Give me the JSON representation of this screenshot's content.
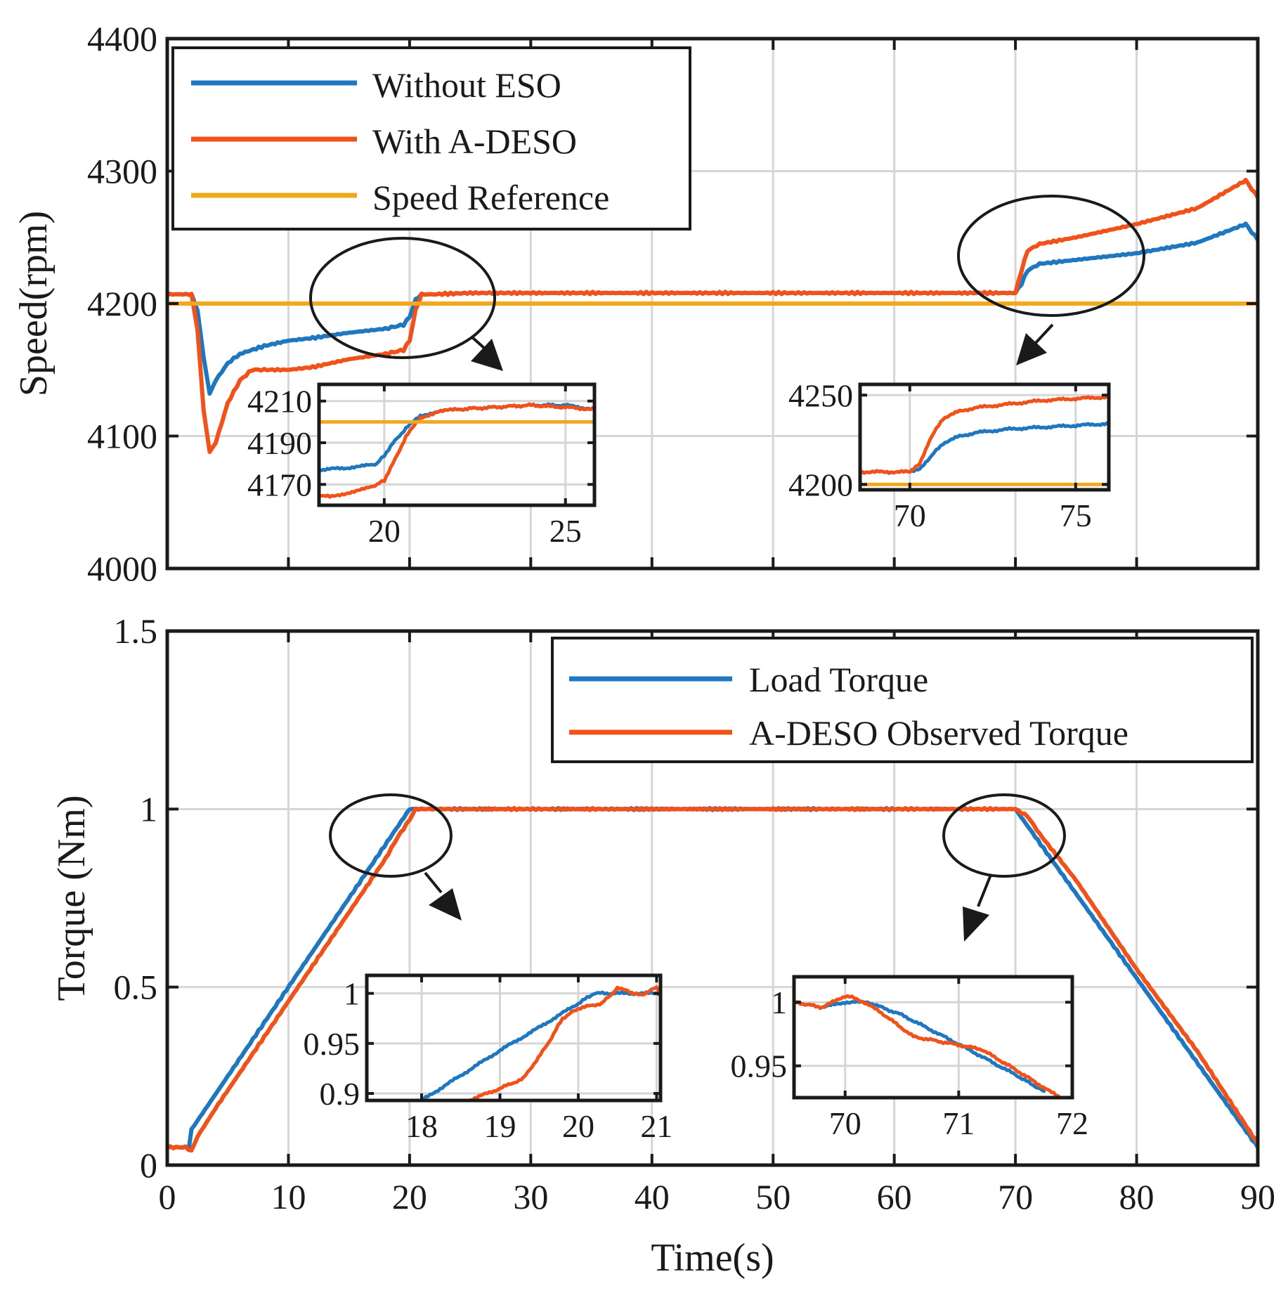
{
  "colors": {
    "blue": "#1f77c0",
    "orange": "#f0521a",
    "yellow": "#f2a81c"
  },
  "chart_data": [
    {
      "type": "line",
      "id": "speed",
      "xlabel": "",
      "ylabel": "Speed(rpm)",
      "xlim": [
        0,
        90
      ],
      "ylim": [
        4000,
        4400
      ],
      "xticks": [
        0,
        10,
        20,
        30,
        40,
        50,
        60,
        70,
        80,
        90
      ],
      "yticks": [
        4000,
        4100,
        4200,
        4300,
        4400
      ],
      "xtick_labels": [],
      "ytick_labels": [
        "4000",
        "4100",
        "4200",
        "4300",
        "4400"
      ],
      "grid": true,
      "legend": {
        "placement": "top-left",
        "entries": [
          "Without ESO",
          "With A-DESO",
          "Speed Reference"
        ]
      },
      "series": [
        {
          "name": "Without ESO",
          "color": "blue",
          "x": [
            0,
            2,
            2.5,
            3,
            3.5,
            4,
            5,
            6,
            8,
            10,
            12,
            15,
            18,
            19.5,
            20,
            20.5,
            21,
            22,
            25,
            30,
            40,
            50,
            60,
            70,
            70.5,
            71,
            72,
            75,
            80,
            85,
            89,
            90
          ],
          "y": [
            4207,
            4207,
            4195,
            4160,
            4132,
            4142,
            4155,
            4162,
            4168,
            4172,
            4174,
            4178,
            4181,
            4184,
            4190,
            4203,
            4207,
            4207,
            4208,
            4208,
            4208,
            4208,
            4208,
            4208,
            4215,
            4225,
            4230,
            4233,
            4238,
            4246,
            4260,
            4248
          ]
        },
        {
          "name": "With A-DESO",
          "color": "orange",
          "x": [
            0,
            2,
            2.5,
            3,
            3.5,
            4,
            4.5,
            5,
            6,
            7,
            8,
            10,
            12,
            15,
            18,
            19.5,
            20,
            20.5,
            21,
            22,
            25,
            30,
            40,
            50,
            60,
            70,
            70.5,
            71,
            72,
            75,
            80,
            85,
            89,
            90
          ],
          "y": [
            4207,
            4207,
            4180,
            4120,
            4088,
            4095,
            4110,
            4125,
            4142,
            4150,
            4150,
            4150,
            4152,
            4158,
            4162,
            4165,
            4172,
            4195,
            4207,
            4207,
            4208,
            4208,
            4208,
            4208,
            4208,
            4208,
            4225,
            4240,
            4245,
            4250,
            4260,
            4272,
            4293,
            4280
          ]
        },
        {
          "name": "Speed Reference",
          "color": "yellow",
          "x": [
            0,
            90
          ],
          "y": [
            4200,
            4200
          ]
        }
      ],
      "annotations": [
        {
          "type": "ellipse",
          "center": [
            20,
            4205
          ]
        },
        {
          "type": "ellipse",
          "center": [
            73,
            4240
          ]
        }
      ],
      "insets": [
        {
          "xlim": [
            18.2,
            25.8
          ],
          "ylim": [
            4160,
            4218
          ],
          "xticks": [
            20,
            25
          ],
          "xtick_labels": [
            "20",
            "25"
          ],
          "yticks": [
            4170,
            4190,
            4210
          ],
          "ytick_labels": [
            "4170",
            "4190",
            "4210"
          ],
          "series": [
            {
              "color": "blue",
              "x": [
                18.2,
                19,
                19.5,
                19.8,
                20,
                20.3,
                20.6,
                21,
                21.5,
                22,
                23,
                24,
                25,
                25.8
              ],
              "y": [
                4177,
                4178,
                4179,
                4180,
                4184,
                4191,
                4197,
                4203,
                4205,
                4206,
                4207,
                4208,
                4208,
                4206
              ]
            },
            {
              "color": "orange",
              "x": [
                18.2,
                18.5,
                19,
                19.5,
                19.8,
                20,
                20.3,
                20.6,
                21,
                21.5,
                22,
                23,
                24,
                25,
                25.8
              ],
              "y": [
                4165,
                4164,
                4166,
                4168,
                4170,
                4172,
                4182,
                4193,
                4202,
                4205,
                4206,
                4207,
                4208,
                4207,
                4206
              ]
            },
            {
              "color": "yellow",
              "x": [
                18.2,
                25.8
              ],
              "y": [
                4200,
                4200
              ]
            }
          ]
        },
        {
          "xlim": [
            68.5,
            76.0
          ],
          "ylim": [
            4197,
            4256
          ],
          "xticks": [
            70,
            75
          ],
          "xtick_labels": [
            "70",
            "75"
          ],
          "yticks": [
            4200,
            4250
          ],
          "ytick_labels": [
            "4200",
            "4250"
          ],
          "series": [
            {
              "color": "blue",
              "x": [
                68.5,
                69.5,
                70,
                70.3,
                70.6,
                71,
                71.5,
                72,
                73,
                74,
                75,
                76
              ],
              "y": [
                4207,
                4207,
                4207,
                4209,
                4215,
                4223,
                4227,
                4229,
                4231,
                4232,
                4233,
                4234
              ]
            },
            {
              "color": "orange",
              "x": [
                68.5,
                69.5,
                70,
                70.3,
                70.6,
                71,
                71.5,
                72,
                73,
                74,
                75,
                76
              ],
              "y": [
                4207,
                4207,
                4207,
                4212,
                4225,
                4237,
                4241,
                4243,
                4245,
                4247,
                4248,
                4249
              ]
            },
            {
              "color": "yellow",
              "x": [
                68.5,
                76
              ],
              "y": [
                4200,
                4200
              ]
            }
          ]
        }
      ]
    },
    {
      "type": "line",
      "id": "torque",
      "xlabel": "Time(s)",
      "ylabel": "Torque (Nm)",
      "xlim": [
        0,
        90
      ],
      "ylim": [
        0,
        1.5
      ],
      "xticks": [
        0,
        10,
        20,
        30,
        40,
        50,
        60,
        70,
        80,
        90
      ],
      "yticks": [
        0,
        0.5,
        1,
        1.5
      ],
      "xtick_labels": [
        "0",
        "10",
        "20",
        "30",
        "40",
        "50",
        "60",
        "70",
        "80",
        "90"
      ],
      "ytick_labels": [
        "0",
        "0.5",
        "1",
        "1.5"
      ],
      "grid": true,
      "legend": {
        "placement": "top-right",
        "entries": [
          "Load Torque",
          "A-DESO Observed Torque"
        ]
      },
      "series": [
        {
          "name": "Load Torque",
          "color": "blue",
          "x": [
            0,
            1.8,
            2.0,
            20,
            70,
            90
          ],
          "y": [
            0.05,
            0.05,
            0.1,
            1.0,
            1.0,
            0.05
          ]
        },
        {
          "name": "A-DESO Observed Torque",
          "color": "orange",
          "x": [
            0,
            1.5,
            2.0,
            2.5,
            4,
            6,
            8,
            10,
            12,
            14,
            16,
            18,
            19,
            20,
            20.5,
            21,
            30,
            40,
            50,
            60,
            70,
            70.5,
            71,
            72,
            75,
            80,
            85,
            90
          ],
          "y": [
            0.05,
            0.05,
            0.04,
            0.08,
            0.16,
            0.26,
            0.36,
            0.46,
            0.56,
            0.66,
            0.76,
            0.86,
            0.92,
            0.97,
            1.0,
            1.0,
            1.0,
            1.0,
            1.0,
            1.0,
            1.0,
            0.99,
            0.98,
            0.93,
            0.8,
            0.55,
            0.32,
            0.06
          ]
        }
      ],
      "annotations": [
        {
          "type": "ellipse",
          "center": [
            18.5,
            0.93
          ]
        },
        {
          "type": "ellipse",
          "center": [
            70,
            0.93
          ]
        }
      ],
      "insets": [
        {
          "xlim": [
            17.3,
            21.05
          ],
          "ylim": [
            0.893,
            1.018
          ],
          "xticks": [
            18,
            19,
            20,
            21
          ],
          "xtick_labels": [
            "18",
            "19",
            "20",
            "21"
          ],
          "yticks": [
            0.9,
            0.95,
            1
          ],
          "ytick_labels": [
            "0.9",
            "0.95",
            "1"
          ],
          "series": [
            {
              "color": "blue",
              "x": [
                18,
                18.5,
                19,
                19.5,
                20,
                20.2,
                20.5,
                21,
                21.05
              ],
              "y": [
                0.893,
                0.918,
                0.943,
                0.966,
                0.99,
                1.0,
                1.0,
                1.0,
                1.0
              ]
            },
            {
              "color": "orange",
              "x": [
                18.6,
                19,
                19.3,
                19.6,
                19.8,
                20,
                20.3,
                20.5,
                20.6,
                20.8,
                21,
                21.05
              ],
              "y": [
                0.893,
                0.905,
                0.915,
                0.948,
                0.975,
                0.985,
                0.99,
                1.005,
                1.003,
                0.998,
                1.006,
                1.002
              ]
            }
          ]
        },
        {
          "xlim": [
            69.55,
            72.0
          ],
          "ylim": [
            0.925,
            1.02
          ],
          "xticks": [
            70,
            71,
            72
          ],
          "xtick_labels": [
            "70",
            "71",
            "72"
          ],
          "yticks": [
            0.95,
            1
          ],
          "ytick_labels": [
            "0.95",
            "1"
          ],
          "series": [
            {
              "color": "blue",
              "x": [
                69.55,
                69.8,
                70,
                70.2,
                70.5,
                71,
                71.5,
                71.75
              ],
              "y": [
                1.0,
                0.996,
                1.0,
                1.0,
                0.99,
                0.967,
                0.943,
                0.93
              ]
            },
            {
              "color": "orange",
              "x": [
                69.55,
                69.8,
                70,
                70.1,
                70.3,
                70.6,
                70.9,
                71.2,
                71.5,
                71.8,
                72.0
              ],
              "y": [
                1.0,
                0.996,
                1.005,
                1.003,
                0.993,
                0.973,
                0.968,
                0.963,
                0.947,
                0.93,
                0.92
              ]
            }
          ]
        }
      ]
    }
  ]
}
